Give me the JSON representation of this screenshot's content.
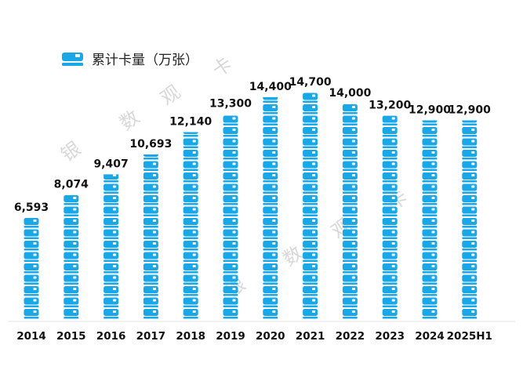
{
  "chart_data": {
    "type": "bar",
    "style": "pictogram-stacked-card-icons",
    "title": "",
    "legend": {
      "label": "累计卡量（万张）",
      "icon": "bank-card-icon",
      "placement": "top-left"
    },
    "categories": [
      "2014",
      "2015",
      "2016",
      "2017",
      "2018",
      "2019",
      "2020",
      "2021",
      "2022",
      "2023",
      "2024",
      "2025H1"
    ],
    "series": [
      {
        "name": "累计卡量（万张）",
        "values": [
          6593,
          8074,
          9407,
          10693,
          12140,
          13300,
          14400,
          14700,
          14000,
          13200,
          12900,
          12900
        ]
      }
    ],
    "value_labels": [
      "6,593",
      "8,074",
      "9,407",
      "10,693",
      "12,140",
      "13,300",
      "14,400",
      "14,700",
      "14,000",
      "13,200",
      "12,900",
      "12,900"
    ],
    "xlabel": "",
    "ylabel": "",
    "ylim": [
      0,
      16000
    ],
    "grid": false,
    "bar_color": "#1aa7e8",
    "watermark": [
      "银",
      "数",
      "观",
      "卡"
    ]
  }
}
